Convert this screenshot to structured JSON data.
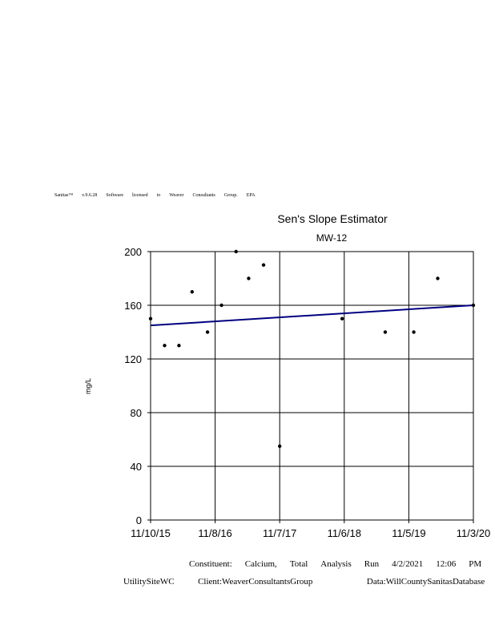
{
  "license_words": [
    "Sanitas™",
    "v.9.6.28",
    "Software",
    "licensed",
    "to",
    "Weaver",
    "Consultants",
    "Group.",
    "EPA"
  ],
  "chart_data": {
    "type": "scatter",
    "title": "Sen's Slope Estimator",
    "subtitle": "MW-12",
    "ylabel": "mg/L",
    "xlabel": "",
    "ylim": [
      0,
      200
    ],
    "yticks": [
      0,
      40,
      80,
      120,
      160,
      200
    ],
    "xlim": [
      "2015-11-10",
      "2020-11-03"
    ],
    "xtick_dates": [
      "2015-11-10",
      "2016-11-08",
      "2017-11-07",
      "2018-11-06",
      "2019-11-05",
      "2020-11-03"
    ],
    "xtick_labels": [
      "11/10/15",
      "11/8/16",
      "11/7/17",
      "11/6/18",
      "11/5/19",
      "11/3/20"
    ],
    "grid": true,
    "points": [
      {
        "x": "2015-11-10",
        "y": 150
      },
      {
        "x": "2016-01-28",
        "y": 130
      },
      {
        "x": "2016-04-18",
        "y": 130
      },
      {
        "x": "2016-07-01",
        "y": 170
      },
      {
        "x": "2016-09-26",
        "y": 140
      },
      {
        "x": "2016-12-14",
        "y": 160
      },
      {
        "x": "2017-03-06",
        "y": 200
      },
      {
        "x": "2017-05-16",
        "y": 180
      },
      {
        "x": "2017-08-08",
        "y": 190
      },
      {
        "x": "2017-11-07",
        "y": 55
      },
      {
        "x": "2018-10-25",
        "y": 150
      },
      {
        "x": "2019-06-25",
        "y": 140
      },
      {
        "x": "2019-12-03",
        "y": 140
      },
      {
        "x": "2020-04-16",
        "y": 180
      },
      {
        "x": "2020-11-03",
        "y": 160
      }
    ],
    "trend_line": {
      "start": {
        "x": "2015-11-10",
        "y": 145
      },
      "end": {
        "x": "2020-11-03",
        "y": 160
      },
      "color": "#000080"
    },
    "marker_color": "#000000",
    "grid_color": "#000000"
  },
  "footer": {
    "line1": [
      "Constituent:",
      "Calcium,",
      "Total",
      "Analysis",
      "Run",
      "4/2/2021",
      "12:06",
      "PM"
    ],
    "site": "UtilitySiteWC",
    "client": "Client:WeaverConsultantsGroup",
    "data": "Data:WillCountySanitasDatabase"
  }
}
